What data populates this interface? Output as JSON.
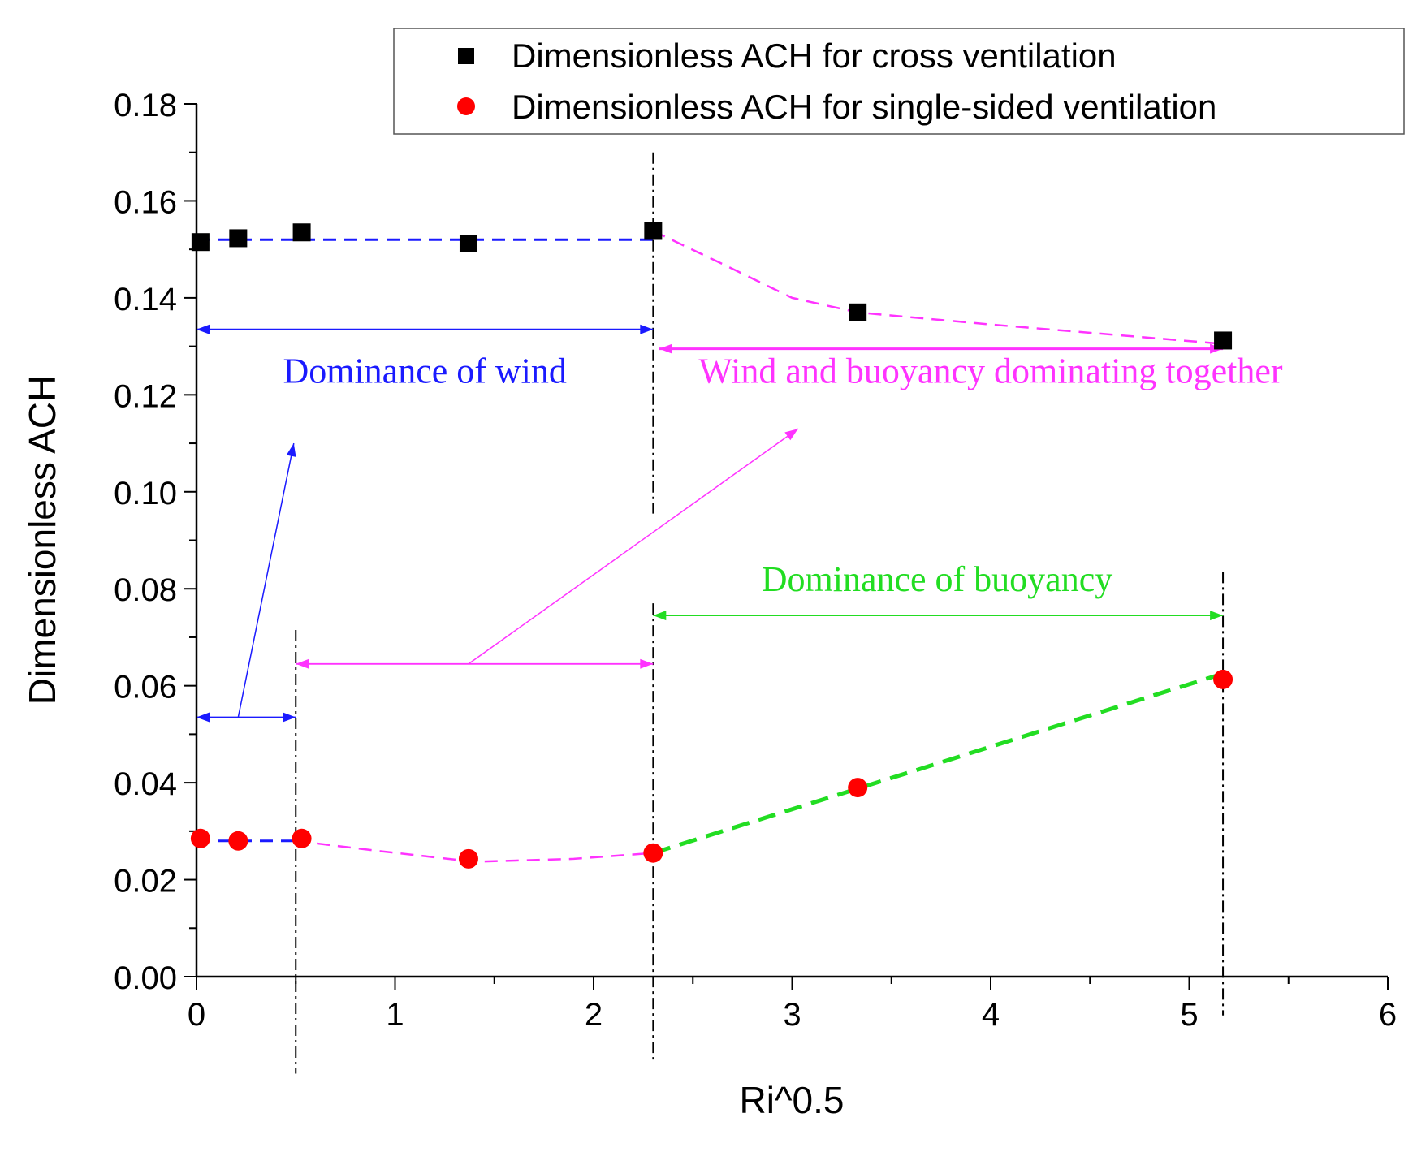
{
  "chart_data": {
    "type": "scatter",
    "title": "",
    "xlabel": "Ri^0.5",
    "ylabel": "Dimensionless ACH",
    "xlim": [
      0,
      6
    ],
    "ylim": [
      0,
      0.18
    ],
    "x_ticks": [
      0,
      1,
      2,
      3,
      4,
      5,
      6
    ],
    "x_tick_labels": [
      "0",
      "1",
      "2",
      "3",
      "4",
      "5",
      "6"
    ],
    "y_ticks": [
      0,
      0.02,
      0.04,
      0.06,
      0.08,
      0.1,
      0.12,
      0.14,
      0.16,
      0.18
    ],
    "y_tick_labels": [
      "0.00",
      "0.02",
      "0.04",
      "0.06",
      "0.08",
      "0.10",
      "0.12",
      "0.14",
      "0.16",
      "0.18"
    ],
    "grid": false,
    "legend": {
      "position": "top-right"
    },
    "series": [
      {
        "name": "Dimensionless ACH for cross ventilation",
        "marker": "square",
        "color": "#000000",
        "x": [
          0.02,
          0.21,
          0.53,
          1.37,
          2.3,
          3.33,
          5.17
        ],
        "y": [
          0.1515,
          0.1523,
          0.1535,
          0.1512,
          0.1538,
          0.137,
          0.1312
        ]
      },
      {
        "name": "Dimensionless ACH for single-sided ventilation",
        "marker": "circle",
        "color": "#ff0000",
        "x": [
          0.02,
          0.21,
          0.53,
          1.37,
          2.3,
          3.33,
          5.17
        ],
        "y": [
          0.0285,
          0.028,
          0.0285,
          0.0243,
          0.0255,
          0.039,
          0.0613
        ]
      }
    ],
    "fit_lines": [
      {
        "id": "cross-flat",
        "color": "#1a1aff",
        "points": [
          [
            0,
            0.152
          ],
          [
            2.3,
            0.152
          ]
        ]
      },
      {
        "id": "cross-decline",
        "color": "#ff33ff",
        "points": [
          [
            2.3,
            0.1538
          ],
          [
            2.7,
            0.146
          ],
          [
            3.0,
            0.14
          ],
          [
            3.33,
            0.137
          ],
          [
            4.0,
            0.1345
          ],
          [
            5.17,
            0.1305
          ]
        ]
      },
      {
        "id": "single-flat",
        "color": "#1a1aff",
        "points": [
          [
            0,
            0.028
          ],
          [
            0.5,
            0.028
          ]
        ]
      },
      {
        "id": "single-dip",
        "color": "#ff33ff",
        "points": [
          [
            0.5,
            0.028
          ],
          [
            0.9,
            0.026
          ],
          [
            1.4,
            0.0237
          ],
          [
            1.9,
            0.0243
          ],
          [
            2.3,
            0.0255
          ]
        ]
      },
      {
        "id": "single-rise",
        "color": "#22dd22",
        "points": [
          [
            2.3,
            0.0255
          ],
          [
            5.17,
            0.0625
          ]
        ]
      }
    ],
    "vertical_lines": [
      {
        "x": 0.5,
        "y_from": 0.0715,
        "y_to": -0.02
      },
      {
        "x": 2.3,
        "y_from": 0.17,
        "y_to": 0.0955
      },
      {
        "x": 2.3,
        "y_from": 0.077,
        "y_to": -0.018
      },
      {
        "x": 5.17,
        "y_from": 0.0835,
        "y_to": -0.008
      }
    ],
    "range_arrows": [
      {
        "id": "wind-top",
        "color": "#1a1aff",
        "x1": 0,
        "x2": 2.3,
        "y": 0.1335
      },
      {
        "id": "together-top",
        "color": "#ff33ff",
        "x1": 2.33,
        "x2": 5.17,
        "y": 0.1295
      },
      {
        "id": "wind-bottom",
        "color": "#1a1aff",
        "x1": 0,
        "x2": 0.5,
        "y": 0.0535
      },
      {
        "id": "together-bottom",
        "color": "#ff33ff",
        "x1": 0.5,
        "x2": 2.3,
        "y": 0.0645
      },
      {
        "id": "buoyancy",
        "color": "#22dd22",
        "x1": 2.3,
        "x2": 5.17,
        "y": 0.0745
      }
    ],
    "pointer_arrows": [
      {
        "id": "wind-pointer",
        "color": "#1a1aff",
        "from": [
          0.21,
          0.0535
        ],
        "to": [
          0.49,
          0.11
        ]
      },
      {
        "id": "together-pointer",
        "color": "#ff33ff",
        "from": [
          1.37,
          0.0645
        ],
        "to": [
          3.03,
          0.113
        ]
      }
    ],
    "annotations": [
      {
        "id": "wind-label",
        "text": "Dominance of wind",
        "color": "#1a1aff",
        "x": 1.15,
        "y": 0.1225
      },
      {
        "id": "together-label",
        "text": "Wind and buoyancy dominating together",
        "color": "#ff33ff",
        "x": 4.0,
        "y": 0.1225
      },
      {
        "id": "buoyancy-label",
        "text": "Dominance of buoyancy",
        "color": "#22dd22",
        "x": 3.73,
        "y": 0.0795
      }
    ]
  }
}
